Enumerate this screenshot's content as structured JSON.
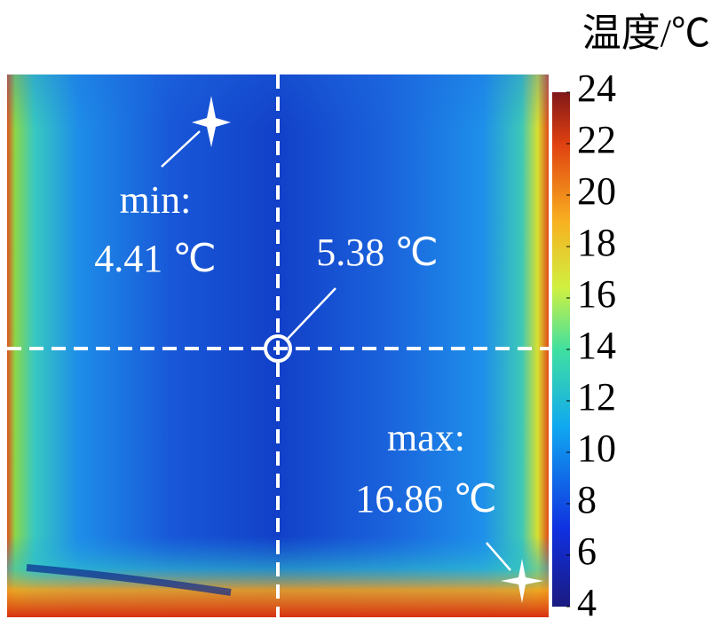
{
  "title": "温度/℃",
  "colorbar": {
    "range": [
      4,
      24
    ],
    "ticks": [
      4,
      6,
      8,
      10,
      12,
      14,
      16,
      18,
      20,
      22,
      24
    ]
  },
  "annotations": {
    "min_label": "min:",
    "min_value": "4.41 ℃",
    "center_value": "5.38 ℃",
    "max_label": "max:",
    "max_value": "16.86 ℃"
  }
}
